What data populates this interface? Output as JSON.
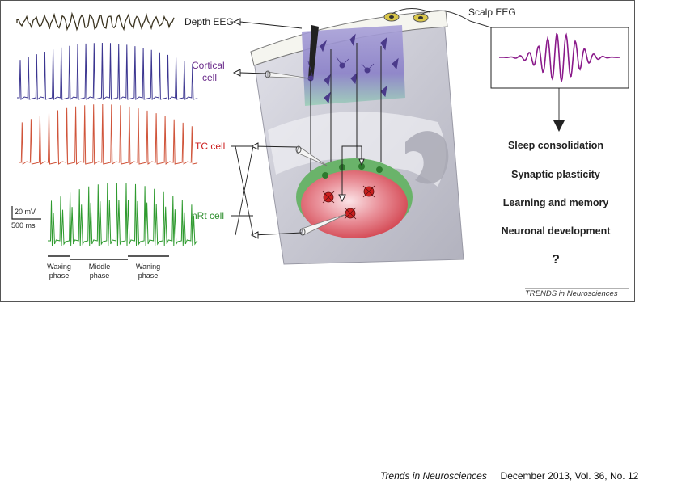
{
  "figure": {
    "labels": {
      "depth_eeg": "Depth EEG",
      "scalp_eeg": "Scalp EEG",
      "cortical_cell_1": "Cortical",
      "cortical_cell_2": "cell",
      "tc_cell": "TC cell",
      "nrt_cell": "nRt cell",
      "scale_mv": "20 mV",
      "scale_ms": "500 ms"
    },
    "phases": {
      "waxing_1": "Waxing",
      "waxing_2": "phase",
      "middle_1": "Middle",
      "middle_2": "phase",
      "waning_1": "Waning",
      "waning_2": "phase"
    },
    "outcomes": [
      "Sleep consolidation",
      "Synaptic plasticity",
      "Learning and memory",
      "Neuronal development",
      "?"
    ],
    "credit": "TRENDS in Neurosciences",
    "colors": {
      "eeg": "#3a3320",
      "cortical": "#3b3590",
      "tc": "#d0543a",
      "nrt": "#2e9a2e",
      "spindle": "#8a1a8a",
      "cortical_label": "#6a2a8a",
      "tc_label": "#cc2222",
      "nrt_label": "#2f8f2f"
    }
  },
  "footer": {
    "journal": "Trends in Neurosciences",
    "issue": "December 2013, Vol. 36, No. 12"
  }
}
